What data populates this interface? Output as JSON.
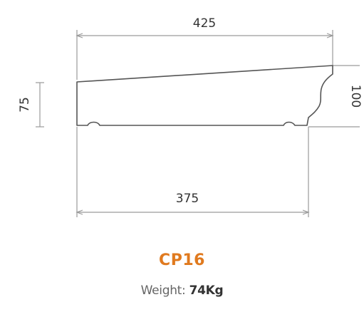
{
  "dimensions": {
    "top_width": "425",
    "bottom_width": "375",
    "left_height": "75",
    "right_height": "100"
  },
  "product": {
    "code": "CP16",
    "weight_label": "Weight:",
    "weight_value": "74Kg"
  },
  "colors": {
    "line": "#555555",
    "dimension_line": "#9a9a9a",
    "accent": "#e07a1f",
    "text": "#333333",
    "muted_text": "#666666"
  }
}
